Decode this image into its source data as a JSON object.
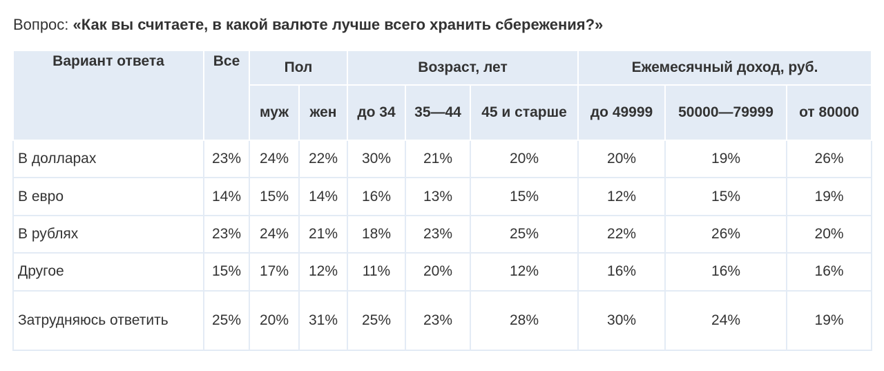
{
  "question": {
    "prefix": "Вопрос: ",
    "text": "«Как вы считаете, в какой валюте лучше всего хранить сбережения?»"
  },
  "table": {
    "header_variant": "Вариант ответа",
    "header_all": "Все",
    "groups": [
      {
        "label": "Пол",
        "subs": [
          "муж",
          "жен"
        ]
      },
      {
        "label": "Возраст, лет",
        "subs": [
          "до 34",
          "35—44",
          "45 и старше"
        ]
      },
      {
        "label": "Ежемесячный доход, руб.",
        "subs": [
          "до 49999",
          "50000—79999",
          "от 80000"
        ]
      }
    ],
    "rows": [
      {
        "label": "В долларах",
        "values": [
          "23%",
          "24%",
          "22%",
          "30%",
          "21%",
          "20%",
          "20%",
          "19%",
          "26%"
        ]
      },
      {
        "label": "В евро",
        "values": [
          "14%",
          "15%",
          "14%",
          "16%",
          "13%",
          "15%",
          "12%",
          "15%",
          "19%"
        ]
      },
      {
        "label": "В рублях",
        "values": [
          "23%",
          "24%",
          "21%",
          "18%",
          "23%",
          "25%",
          "22%",
          "26%",
          "20%"
        ]
      },
      {
        "label": "Другое",
        "values": [
          "15%",
          "17%",
          "12%",
          "11%",
          "20%",
          "12%",
          "16%",
          "16%",
          "16%"
        ]
      },
      {
        "label": "Затрудняюсь ответить",
        "values": [
          "25%",
          "20%",
          "31%",
          "25%",
          "23%",
          "28%",
          "30%",
          "24%",
          "19%"
        ]
      }
    ]
  }
}
